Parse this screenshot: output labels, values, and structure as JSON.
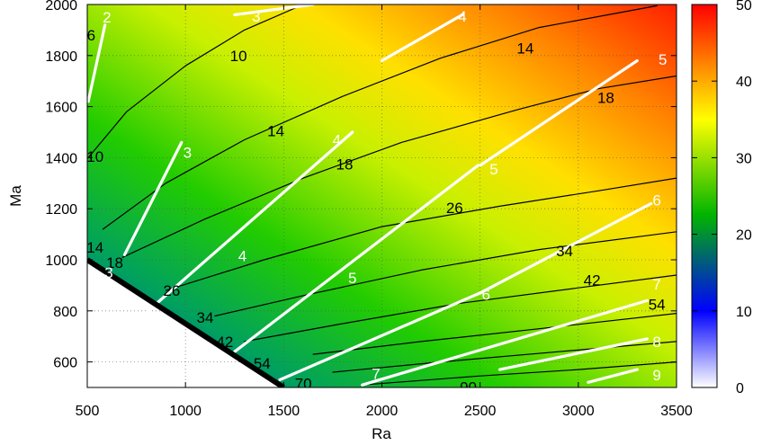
{
  "chart_data": {
    "type": "heatmap",
    "title": "",
    "xlabel": "Ra",
    "ylabel": "Ma",
    "xlim": [
      500,
      3500
    ],
    "ylim": [
      500,
      2000
    ],
    "xticks": [
      "500",
      "1000",
      "1500",
      "2000",
      "2500",
      "3000",
      "3500"
    ],
    "yticks": [
      "600",
      "800",
      "1000",
      "1200",
      "1400",
      "1600",
      "1800",
      "2000"
    ],
    "grid": true,
    "colorbar": {
      "range": [
        0,
        50
      ],
      "ticks": [
        "0",
        "10",
        "20",
        "30",
        "40",
        "50"
      ],
      "colors": [
        "#ffffff",
        "#0000ff",
        "#00b400",
        "#ffff00",
        "#ff8000",
        "#ff0000"
      ]
    },
    "stability_boundary": {
      "points": [
        [
          500,
          1000
        ],
        [
          1500,
          500
        ]
      ],
      "color": "#000000"
    },
    "black_contours": [
      {
        "label": "10",
        "points": [
          [
            505,
            1400
          ],
          [
            700,
            1580
          ],
          [
            1000,
            1760
          ],
          [
            1300,
            1900
          ],
          [
            1600,
            2000
          ]
        ]
      },
      {
        "label": "14",
        "points": [
          [
            580,
            1120
          ],
          [
            900,
            1300
          ],
          [
            1300,
            1470
          ],
          [
            1800,
            1640
          ],
          [
            2300,
            1790
          ],
          [
            2800,
            1910
          ],
          [
            3400,
            1995
          ]
        ]
      },
      {
        "label": "18",
        "points": [
          [
            680,
            1010
          ],
          [
            1100,
            1160
          ],
          [
            1600,
            1320
          ],
          [
            2100,
            1460
          ],
          [
            2700,
            1590
          ],
          [
            3100,
            1670
          ],
          [
            3500,
            1720
          ]
        ]
      },
      {
        "label": "26",
        "points": [
          [
            900,
            880
          ],
          [
            1400,
            1000
          ],
          [
            2000,
            1130
          ],
          [
            2600,
            1210
          ],
          [
            3100,
            1270
          ],
          [
            3500,
            1320
          ]
        ]
      },
      {
        "label": "34",
        "points": [
          [
            1150,
            780
          ],
          [
            1600,
            860
          ],
          [
            2200,
            960
          ],
          [
            2800,
            1040
          ],
          [
            3500,
            1110
          ]
        ]
      },
      {
        "label": "42",
        "points": [
          [
            1300,
            680
          ],
          [
            1800,
            750
          ],
          [
            2400,
            830
          ],
          [
            3000,
            890
          ],
          [
            3500,
            940
          ]
        ]
      },
      {
        "label": "54",
        "points": [
          [
            1650,
            630
          ],
          [
            2200,
            680
          ],
          [
            2800,
            730
          ],
          [
            3500,
            790
          ]
        ]
      },
      {
        "label": "70",
        "points": [
          [
            1750,
            560
          ],
          [
            2300,
            600
          ],
          [
            2900,
            640
          ],
          [
            3500,
            680
          ]
        ]
      },
      {
        "label": "90",
        "points": [
          [
            1900,
            510
          ],
          [
            2500,
            545
          ],
          [
            3000,
            570
          ],
          [
            3500,
            600
          ]
        ]
      }
    ],
    "black_labels": [
      {
        "text": "6",
        "x": 520,
        "y": 1880
      },
      {
        "text": "10",
        "x": 1270,
        "y": 1800
      },
      {
        "text": "14",
        "x": 2730,
        "y": 1830
      },
      {
        "text": "10",
        "x": 540,
        "y": 1405
      },
      {
        "text": "14",
        "x": 1460,
        "y": 1505
      },
      {
        "text": "18",
        "x": 3140,
        "y": 1635
      },
      {
        "text": "18",
        "x": 1810,
        "y": 1375
      },
      {
        "text": "14",
        "x": 540,
        "y": 1050
      },
      {
        "text": "26",
        "x": 2370,
        "y": 1205
      },
      {
        "text": "18",
        "x": 640,
        "y": 990
      },
      {
        "text": "34",
        "x": 2930,
        "y": 1035
      },
      {
        "text": "26",
        "x": 930,
        "y": 880
      },
      {
        "text": "42",
        "x": 3070,
        "y": 920
      },
      {
        "text": "34",
        "x": 1100,
        "y": 775
      },
      {
        "text": "54",
        "x": 3400,
        "y": 825
      },
      {
        "text": "42",
        "x": 1200,
        "y": 680
      },
      {
        "text": "54",
        "x": 1390,
        "y": 595
      },
      {
        "text": "70",
        "x": 1600,
        "y": 515
      },
      {
        "text": "90",
        "x": 2440,
        "y": 502
      }
    ],
    "white_contours": [
      {
        "label": "2",
        "points": [
          [
            505,
            1620
          ],
          [
            590,
            1920
          ]
        ]
      },
      {
        "label": "3",
        "points": [
          [
            1250,
            1960
          ],
          [
            1650,
            2000
          ]
        ]
      },
      {
        "label": "3",
        "points": [
          [
            690,
            1020
          ],
          [
            980,
            1460
          ]
        ]
      },
      {
        "label": "4",
        "points": [
          [
            780,
            780
          ],
          [
            1850,
            1500
          ]
        ]
      },
      {
        "label": "4",
        "points": [
          [
            2000,
            1780
          ],
          [
            2410,
            1960
          ]
        ]
      },
      {
        "label": "5",
        "points": [
          [
            1250,
            640
          ],
          [
            2490,
            1370
          ]
        ]
      },
      {
        "label": "5",
        "points": [
          [
            2500,
            1370
          ],
          [
            3300,
            1780
          ]
        ]
      },
      {
        "label": "6",
        "points": [
          [
            1480,
            530
          ],
          [
            2500,
            870
          ]
        ]
      },
      {
        "label": "6",
        "points": [
          [
            2500,
            870
          ],
          [
            3370,
            1220
          ]
        ]
      },
      {
        "label": "7",
        "points": [
          [
            1900,
            510
          ],
          [
            3350,
            840
          ]
        ]
      },
      {
        "label": "8",
        "points": [
          [
            2600,
            570
          ],
          [
            3350,
            690
          ]
        ]
      },
      {
        "label": "9",
        "points": [
          [
            3050,
            520
          ],
          [
            3300,
            570
          ]
        ]
      }
    ],
    "white_labels": [
      {
        "text": "2",
        "x": 600,
        "y": 1950
      },
      {
        "text": "3",
        "x": 1360,
        "y": 1955
      },
      {
        "text": "3",
        "x": 1010,
        "y": 1420
      },
      {
        "text": "3",
        "x": 610,
        "y": 950
      },
      {
        "text": "4",
        "x": 2410,
        "y": 1955
      },
      {
        "text": "4",
        "x": 1770,
        "y": 1470
      },
      {
        "text": "4",
        "x": 1290,
        "y": 1015
      },
      {
        "text": "5",
        "x": 3430,
        "y": 1785
      },
      {
        "text": "5",
        "x": 2570,
        "y": 1355
      },
      {
        "text": "5",
        "x": 1850,
        "y": 930
      },
      {
        "text": "6",
        "x": 3400,
        "y": 1235
      },
      {
        "text": "6",
        "x": 2530,
        "y": 865
      },
      {
        "text": "7",
        "x": 3400,
        "y": 905
      },
      {
        "text": "7",
        "x": 1970,
        "y": 555
      },
      {
        "text": "8",
        "x": 3400,
        "y": 680
      },
      {
        "text": "9",
        "x": 3400,
        "y": 550
      }
    ]
  }
}
